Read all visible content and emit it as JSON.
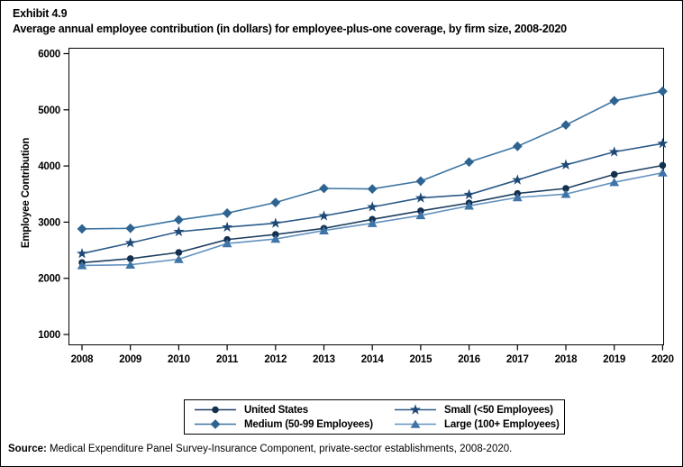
{
  "exhibit_label": "Exhibit 4.9",
  "title": "Average annual employee contribution (in dollars) for employee-plus-one coverage, by firm size, 2008-2020",
  "source": {
    "label": "Source:",
    "text": " Medical Expenditure Panel Survey-Insurance Component, private-sector establishments, 2008-2020."
  },
  "chart_data": {
    "type": "line",
    "x": [
      2008,
      2009,
      2010,
      2011,
      2012,
      2013,
      2014,
      2015,
      2016,
      2017,
      2018,
      2019,
      2020
    ],
    "xlabel": "",
    "ylabel": "Employee Contribution",
    "ylim": [
      1000,
      6000
    ],
    "yticks": [
      1000,
      2000,
      3000,
      4000,
      5000,
      6000
    ],
    "grid": false,
    "legend_position": "bottom",
    "series": [
      {
        "name": "United States",
        "marker": "circle",
        "marker_color": "#13304e",
        "line_color": "#1e3f60",
        "values": [
          2280,
          2350,
          2460,
          2690,
          2780,
          2890,
          3050,
          3200,
          3340,
          3510,
          3600,
          3850,
          4010
        ]
      },
      {
        "name": "Small (<50 Employees)",
        "marker": "star",
        "marker_color": "#1e4977",
        "line_color": "#2b5a88",
        "values": [
          2440,
          2630,
          2830,
          2910,
          2980,
          3110,
          3270,
          3430,
          3490,
          3750,
          4020,
          4250,
          4400
        ]
      },
      {
        "name": "Medium (50-99 Employees)",
        "marker": "diamond",
        "marker_color": "#2e6392",
        "line_color": "#3b74a2",
        "values": [
          2880,
          2890,
          3040,
          3160,
          3350,
          3600,
          3590,
          3730,
          4070,
          4350,
          4730,
          5160,
          5330
        ]
      },
      {
        "name": "Large (100+ Employees)",
        "marker": "triangle",
        "marker_color": "#3e74a7",
        "line_color": "#6492bf",
        "values": [
          2230,
          2240,
          2340,
          2620,
          2700,
          2850,
          2980,
          3120,
          3290,
          3440,
          3500,
          3710,
          3880
        ]
      }
    ]
  }
}
